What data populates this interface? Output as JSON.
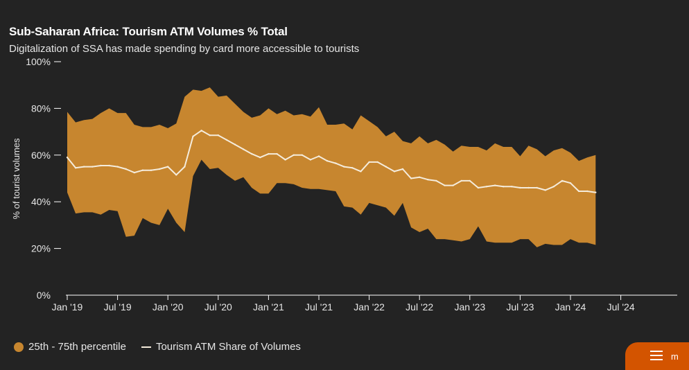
{
  "header": {
    "title": "Sub-Saharan Africa: Tourism ATM Volumes % Total",
    "subtitle": "Digitalization of SSA has made spending by card more accessible to tourists"
  },
  "legend": {
    "band_label": "25th - 75th percentile",
    "line_label": "Tourism ATM Share of Volumes"
  },
  "menu": {
    "label": "m"
  },
  "colors": {
    "background": "#232323",
    "band": "#c7862f",
    "line": "#f5ecdc",
    "axis": "#ffffff",
    "menu_button": "#d35400"
  },
  "chart_data": {
    "type": "area",
    "title": "Sub-Saharan Africa: Tourism ATM Volumes % Total",
    "subtitle": "Digitalization of SSA has made spending by card more accessible to tourists",
    "xlabel": "",
    "ylabel": "% of tourist volumes",
    "ylim": [
      0,
      100
    ],
    "y_ticks": [
      0,
      20,
      40,
      60,
      80,
      100
    ],
    "y_tick_labels": [
      "0%",
      "20%",
      "40%",
      "60%",
      "80%",
      "100%"
    ],
    "x_start": "2019-01",
    "x_end_axis": "2024-12",
    "x_tick_labels": [
      "Jan '19",
      "Jul '19",
      "Jan '20",
      "Jul '20",
      "Jan '21",
      "Jul '21",
      "Jan '22",
      "Jul '22",
      "Jan '23",
      "Jul '23",
      "Jan '24",
      "Jul '24"
    ],
    "x_tick_months": [
      "2019-01",
      "2019-07",
      "2020-01",
      "2020-07",
      "2021-01",
      "2021-07",
      "2022-01",
      "2022-07",
      "2023-01",
      "2023-07",
      "2024-01",
      "2024-07"
    ],
    "grid": false,
    "legend_position": "bottom-left",
    "x": [
      "2019-01",
      "2019-02",
      "2019-03",
      "2019-04",
      "2019-05",
      "2019-06",
      "2019-07",
      "2019-08",
      "2019-09",
      "2019-10",
      "2019-11",
      "2019-12",
      "2020-01",
      "2020-02",
      "2020-03",
      "2020-04",
      "2020-05",
      "2020-06",
      "2020-07",
      "2020-08",
      "2020-09",
      "2020-10",
      "2020-11",
      "2020-12",
      "2021-01",
      "2021-02",
      "2021-03",
      "2021-04",
      "2021-05",
      "2021-06",
      "2021-07",
      "2021-08",
      "2021-09",
      "2021-10",
      "2021-11",
      "2021-12",
      "2022-01",
      "2022-02",
      "2022-03",
      "2022-04",
      "2022-05",
      "2022-06",
      "2022-07",
      "2022-08",
      "2022-09",
      "2022-10",
      "2022-11",
      "2022-12",
      "2023-01",
      "2023-02",
      "2023-03",
      "2023-04",
      "2023-05",
      "2023-06",
      "2023-07",
      "2023-08",
      "2023-09",
      "2023-10",
      "2023-11",
      "2023-12",
      "2024-01",
      "2024-02",
      "2024-03",
      "2024-04"
    ],
    "series": [
      {
        "name": "25th - 75th percentile",
        "kind": "band",
        "upper": [
          78.5,
          74,
          75,
          75.5,
          78,
          80,
          78,
          78,
          73,
          72,
          72,
          73,
          71.5,
          73.5,
          85,
          88,
          87.5,
          89,
          85,
          85.5,
          82,
          78.5,
          76,
          77,
          80,
          77.5,
          79,
          77,
          77.5,
          76.5,
          80.5,
          73,
          73,
          73.5,
          71,
          77,
          74.5,
          72,
          68,
          70,
          66,
          65,
          68,
          65,
          66.5,
          64.5,
          61.5,
          64,
          63.5,
          63.5,
          62,
          65,
          63.5,
          63.5,
          59.5,
          64,
          62.5,
          59.5,
          62,
          63,
          61,
          57.5,
          59,
          60
        ],
        "lower": [
          44,
          35,
          35.5,
          35.5,
          34.5,
          36.5,
          36,
          25,
          25.5,
          33,
          31,
          30,
          37,
          31,
          27,
          51,
          58,
          54,
          54.5,
          51.5,
          49,
          50.5,
          46,
          43.5,
          43.5,
          48,
          48,
          47.5,
          46,
          45.5,
          45.5,
          45,
          44.5,
          38,
          37.5,
          34.5,
          39.5,
          38.5,
          37.5,
          34,
          39.5,
          29,
          27,
          28.5,
          24,
          24,
          23.5,
          23,
          24,
          29.5,
          23,
          22.5,
          22.5,
          22.5,
          24,
          24,
          20.5,
          22,
          21.5,
          21.5,
          24,
          22.5,
          22.5,
          21.5
        ]
      },
      {
        "name": "Tourism ATM Share of Volumes",
        "kind": "line",
        "values": [
          59,
          54.5,
          55,
          55,
          55.5,
          55.5,
          55,
          54,
          52.5,
          53.5,
          53.5,
          54,
          55,
          51.5,
          55,
          68,
          70.5,
          68.5,
          68.5,
          66.5,
          64.5,
          62.5,
          60.5,
          59,
          60.5,
          60.5,
          58,
          60,
          60,
          58,
          59.5,
          57.5,
          56.5,
          55,
          54.5,
          53,
          57,
          57,
          55,
          53,
          54,
          50,
          50.5,
          49.5,
          49,
          47,
          47,
          49,
          49,
          46,
          46.5,
          47,
          46.5,
          46.5,
          46,
          46,
          46,
          45,
          46.5,
          49,
          48,
          44.5,
          44.5,
          44
        ]
      }
    ]
  }
}
